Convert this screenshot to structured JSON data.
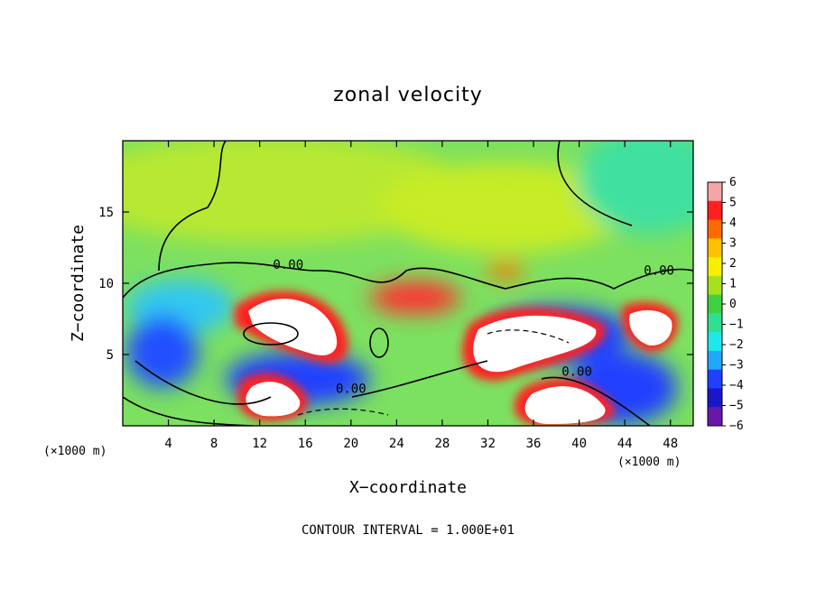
{
  "chart_data": {
    "type": "heatmap",
    "title": "zonal velocity",
    "xlabel": "X−coordinate",
    "ylabel": "Z−coordinate",
    "x_unit": "(×1000 m)",
    "z_unit": "(×1000 m)",
    "xlim": [
      0,
      50
    ],
    "ylim": [
      0,
      20
    ],
    "x_ticks": [
      4,
      8,
      12,
      16,
      20,
      24,
      28,
      32,
      36,
      40,
      44,
      48
    ],
    "y_ticks": [
      5,
      10,
      15
    ],
    "colorbar": {
      "min": -6,
      "max": 6,
      "labels": [
        "6",
        "5",
        "4",
        "3",
        "2",
        "1",
        "0",
        "−1",
        "−2",
        "−3",
        "−4",
        "−5",
        "−6"
      ],
      "colors": [
        "#f4a6a6",
        "#ff2020",
        "#ff6a00",
        "#ffc000",
        "#f8f000",
        "#a8e020",
        "#40d040",
        "#30e090",
        "#20e8e8",
        "#20a8ff",
        "#2040ff",
        "#1818c8",
        "#6818a8"
      ]
    },
    "contour_labels": [
      {
        "x": 14.5,
        "z": 11.0,
        "text": "0.00"
      },
      {
        "x": 47.0,
        "z": 10.6,
        "text": "0.00"
      },
      {
        "x": 20.0,
        "z": 2.3,
        "text": "0.00"
      },
      {
        "x": 39.8,
        "z": 3.5,
        "text": "0.00"
      }
    ],
    "footer": "CONTOUR INTERVAL = 1.000E+01"
  }
}
